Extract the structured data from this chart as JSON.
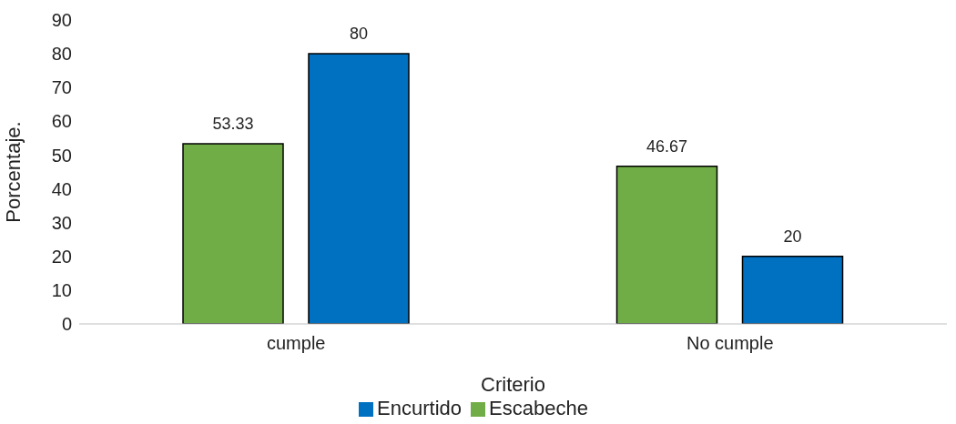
{
  "chart_data": {
    "type": "bar",
    "xlabel": "Criterio",
    "ylabel": "Porcentaje.",
    "categories": [
      "cumple",
      "No cumple"
    ],
    "series": [
      {
        "name": "Escabeche",
        "color": "#70ad47",
        "values": [
          53.33,
          46.67
        ]
      },
      {
        "name": "Encurtido",
        "color": "#0070c0",
        "values": [
          80,
          20
        ]
      }
    ],
    "ylim": [
      0,
      90
    ],
    "yticks": [
      0,
      10,
      20,
      30,
      40,
      50,
      60,
      70,
      80,
      90
    ],
    "grid": false,
    "legend": "bottom",
    "data_labels": true
  }
}
